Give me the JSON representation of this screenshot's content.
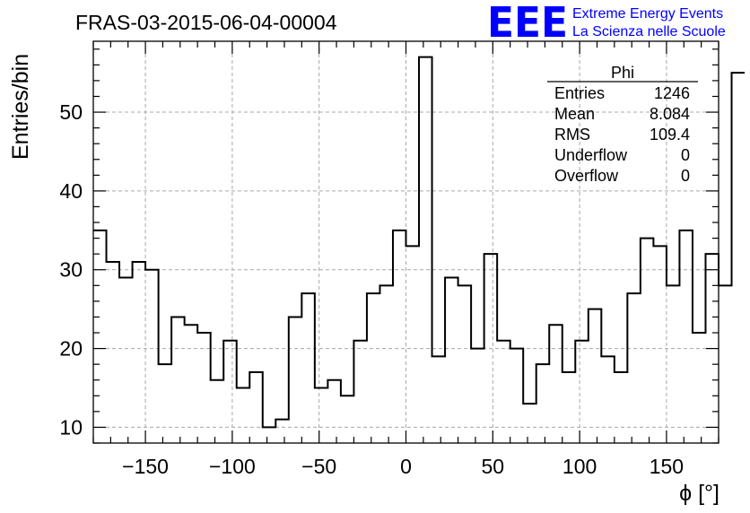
{
  "chart_data": {
    "type": "bar",
    "title": "FRAS-03-2015-06-04-00004",
    "xlabel": "ϕ [°]",
    "ylabel": "Entries/bin",
    "xlim": [
      -180,
      180
    ],
    "ylim": [
      8,
      59
    ],
    "xticks": [
      -150,
      -100,
      -50,
      0,
      50,
      100,
      150
    ],
    "yticks": [
      10,
      20,
      30,
      40,
      50
    ],
    "grid": true,
    "bin_width": 7.5,
    "bin_edges_start": -180,
    "values": [
      35,
      31,
      29,
      31,
      30,
      18,
      24,
      23,
      22,
      16,
      21,
      15,
      17,
      10,
      11,
      24,
      27,
      15,
      16,
      14,
      21,
      27,
      28,
      35,
      33,
      57,
      19,
      29,
      28,
      20,
      32,
      21,
      20,
      13,
      18,
      23,
      17,
      21,
      25,
      19,
      17,
      27,
      34,
      33,
      28,
      35,
      22,
      32,
      28,
      55
    ]
  },
  "branding": {
    "logo": "EEE",
    "line1": "Extreme Energy Events",
    "line2": "La Scienza nelle Scuole"
  },
  "stats_box": {
    "name": "Phi",
    "rows": [
      {
        "label": "Entries",
        "value": "1246"
      },
      {
        "label": "Mean",
        "value": "8.084"
      },
      {
        "label": "RMS",
        "value": "109.4"
      },
      {
        "label": "Underflow",
        "value": "0"
      },
      {
        "label": "Overflow",
        "value": "0"
      }
    ]
  }
}
